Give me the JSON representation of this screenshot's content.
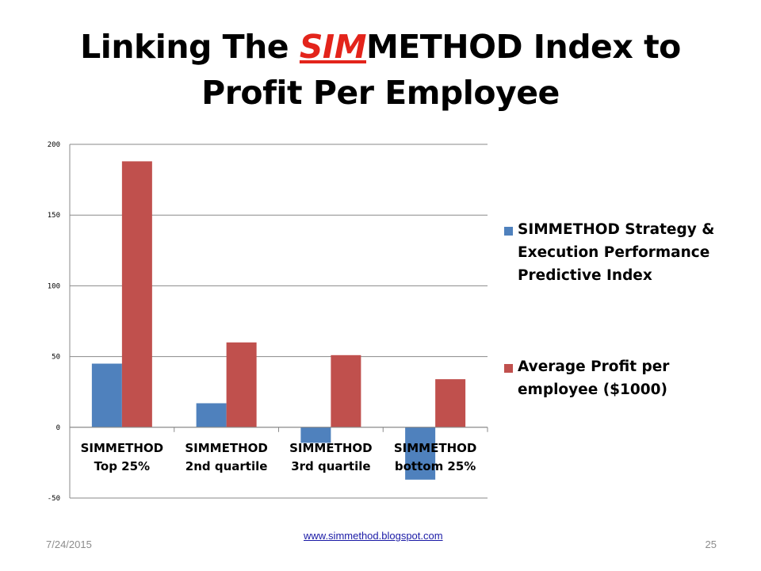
{
  "slide": {
    "title_prefix": "Linking The ",
    "title_accent": "SIM",
    "title_rest": "METHOD Index to Profit Per Employee",
    "footer_date": "7/24/2015",
    "footer_link": "www.simmethod.blogspot.com",
    "page_number": "25"
  },
  "chart_data": {
    "type": "bar",
    "categories": [
      [
        "SIMMETHOD",
        "Top 25%"
      ],
      [
        "SIMMETHOD",
        "2nd quartile"
      ],
      [
        "SIMMETHOD",
        "3rd quartile"
      ],
      [
        "SIMMETHOD",
        "bottom 25%"
      ]
    ],
    "series": [
      {
        "name": "SIMMETHOD Strategy & Execution Performance Predictive Index",
        "legend_lines": [
          "SIMMETHOD Strategy &",
          "Execution Performance",
          "Predictive Index"
        ],
        "color": "#4f81bd",
        "values": [
          45,
          17,
          -11,
          -37
        ]
      },
      {
        "name": "Average Profit per employee ($1000)",
        "legend_lines": [
          "Average Profit per",
          "employee ($1000)"
        ],
        "color": "#c0504d",
        "values": [
          188,
          60,
          51,
          34
        ]
      }
    ],
    "ylim": [
      -50,
      200
    ],
    "yticks": [
      -50,
      0,
      50,
      100,
      150,
      200
    ],
    "grid": true,
    "legend": "right",
    "title": "",
    "xlabel": "",
    "ylabel": ""
  }
}
